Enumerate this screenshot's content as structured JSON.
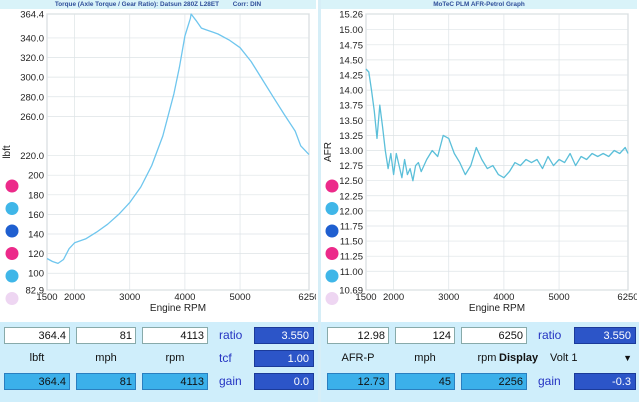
{
  "left_panel": {
    "title": {
      "part1": "Torque (Axle Torque / Gear Ratio): Datsun 280Z L28ET",
      "part2": "Corr: DIN"
    },
    "series_color": "#6fc6ee",
    "bottom": {
      "row1": {
        "v1": "364.4",
        "v2": "81",
        "v3": "4113",
        "lab": "ratio",
        "dv": "3.550"
      },
      "row2": {
        "l1": "lbft",
        "l2": "mph",
        "l3": "rpm",
        "lab": "tcf",
        "dv": "1.00"
      },
      "row3": {
        "v1": "364.4",
        "v2": "81",
        "v3": "4113",
        "lab": "gain",
        "dv": "0.0"
      }
    }
  },
  "right_panel": {
    "title": "MoTeC PLM AFR-Petrol Graph",
    "series_color": "#5bbfd9",
    "bottom": {
      "row1": {
        "v1": "12.98",
        "v2": "124",
        "v3": "6250",
        "lab": "ratio",
        "dv": "3.550"
      },
      "row2": {
        "l1": "AFR-P",
        "l2": "mph",
        "l3": "rpm",
        "display": "Display",
        "dropdown": "Volt 1",
        "arrow": "▼"
      },
      "row3": {
        "v1": "12.73",
        "v2": "45",
        "v3": "2256",
        "lab": "gain",
        "dv": "-0.3"
      }
    }
  },
  "legend_dot_colors": [
    "#ec2a8a",
    "#3fb6e8",
    "#1f5fd0",
    "#ec2a8a",
    "#3fb6e8",
    "#eed6f2"
  ],
  "chart_data": [
    {
      "type": "line",
      "title": "Torque (Axle Torque / Gear Ratio): Datsun 280Z L28ET",
      "xlabel": "Engine RPM",
      "ylabel": "lbft",
      "xlim": [
        1500,
        6250
      ],
      "ylim": [
        82.9,
        364.4
      ],
      "x_ticks": [
        1500,
        2000,
        3000,
        4000,
        5000,
        6250
      ],
      "y_ticks": [
        82.9,
        100.0,
        120.0,
        140.0,
        160.0,
        180.0,
        200.0,
        220.0,
        260.0,
        280.0,
        300.0,
        320.0,
        340.0,
        364.4
      ],
      "y_tick_labels": [
        "82.9",
        "100",
        "120",
        "140",
        "160",
        "180",
        "200",
        "220.0",
        "260.0",
        "280.0",
        "300.0",
        "320.0",
        "340.0",
        "364.4"
      ],
      "grid": true,
      "series": [
        {
          "x": [
            1500,
            1600,
            1700,
            1800,
            1900,
            2000,
            2200,
            2400,
            2600,
            2800,
            3000,
            3200,
            3400,
            3600,
            3800,
            3900,
            4000,
            4100,
            4113,
            4200,
            4300,
            4400,
            4500,
            4600,
            4800,
            5000,
            5200,
            5400,
            5600,
            5800,
            6000,
            6100,
            6250
          ],
          "y": [
            115,
            112,
            110,
            114,
            125,
            131,
            135,
            142,
            150,
            160,
            172,
            188,
            210,
            240,
            283,
            310,
            342,
            360,
            364.4,
            358,
            350,
            348,
            346,
            344,
            338,
            330,
            316,
            298,
            280,
            262,
            245,
            230,
            221
          ]
        }
      ]
    },
    {
      "type": "line",
      "title": "MoTeC PLM AFR-Petrol Graph",
      "xlabel": "Engine RPM",
      "ylabel": "AFR",
      "xlim": [
        1500,
        6250
      ],
      "ylim": [
        10.69,
        15.26
      ],
      "x_ticks": [
        1500,
        2000,
        3000,
        4000,
        5000,
        6250
      ],
      "y_ticks": [
        10.69,
        11.0,
        11.25,
        11.5,
        11.75,
        12.0,
        12.25,
        12.5,
        12.75,
        13.0,
        13.25,
        13.5,
        13.75,
        14.0,
        14.25,
        14.5,
        14.75,
        15.0,
        15.26
      ],
      "y_tick_labels": [
        "10.69",
        "11.00",
        "11.25",
        "11.50",
        "11.75",
        "12.00",
        "12.25",
        "12.50",
        "12.75",
        "13.00",
        "13.25",
        "13.50",
        "13.75",
        "14.00",
        "14.25",
        "14.50",
        "14.75",
        "15.00",
        "15.26"
      ],
      "grid": true,
      "series": [
        {
          "x": [
            1500,
            1550,
            1600,
            1650,
            1700,
            1750,
            1800,
            1850,
            1900,
            1950,
            2000,
            2050,
            2100,
            2150,
            2200,
            2250,
            2300,
            2350,
            2400,
            2450,
            2500,
            2600,
            2700,
            2800,
            2900,
            3000,
            3100,
            3200,
            3300,
            3400,
            3500,
            3600,
            3700,
            3800,
            3900,
            4000,
            4100,
            4200,
            4300,
            4400,
            4500,
            4600,
            4700,
            4800,
            4900,
            5000,
            5100,
            5200,
            5300,
            5400,
            5500,
            5600,
            5700,
            5800,
            5900,
            6000,
            6100,
            6200,
            6250
          ],
          "y": [
            14.35,
            14.3,
            14.0,
            13.65,
            13.2,
            13.75,
            13.4,
            13.0,
            12.7,
            12.95,
            12.6,
            12.95,
            12.75,
            12.55,
            12.85,
            12.6,
            12.7,
            12.5,
            12.75,
            12.8,
            12.65,
            12.85,
            13.0,
            12.9,
            13.25,
            13.2,
            12.95,
            12.8,
            12.6,
            12.75,
            13.05,
            12.85,
            12.7,
            12.75,
            12.6,
            12.55,
            12.65,
            12.8,
            12.75,
            12.85,
            12.8,
            12.85,
            12.7,
            12.9,
            12.75,
            12.85,
            12.8,
            12.95,
            12.75,
            12.9,
            12.85,
            12.95,
            12.9,
            12.95,
            12.9,
            13.0,
            12.95,
            13.05,
            12.95
          ]
        }
      ]
    }
  ]
}
